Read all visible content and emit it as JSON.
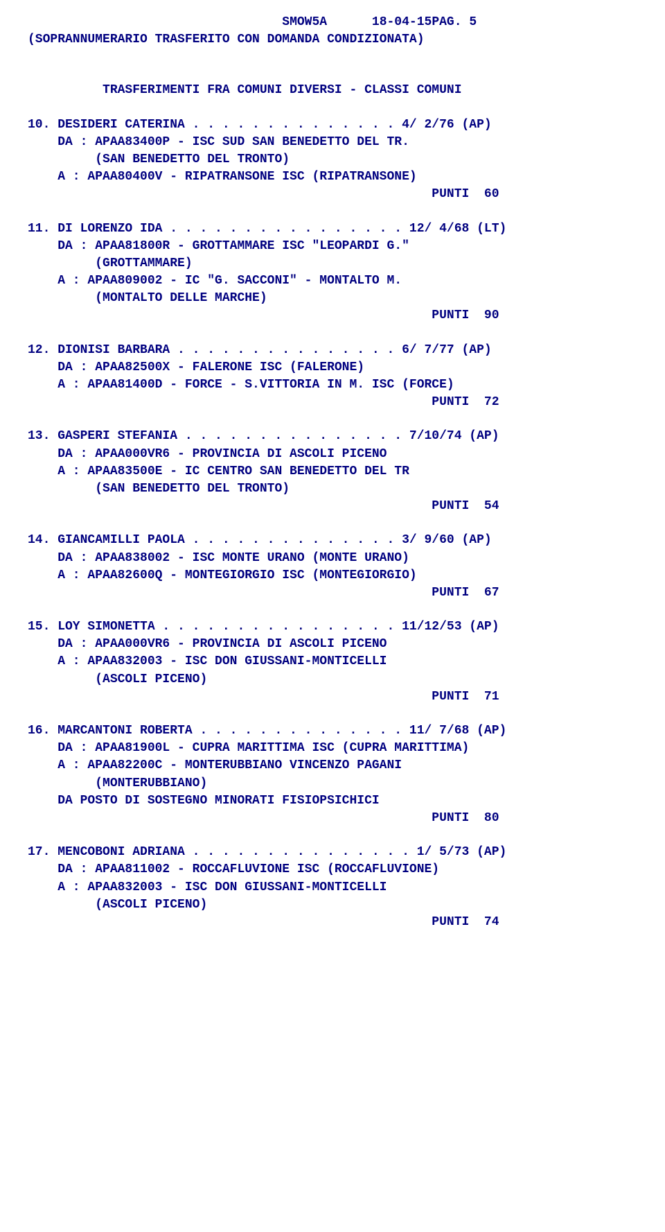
{
  "header": {
    "code": "SMOW5A",
    "date": "18-04-15",
    "page_label": "PAG.",
    "page_num": "5"
  },
  "subtitle": "(SOPRANNUMERARIO TRASFERITO CON DOMANDA CONDIZIONATA)",
  "section_title": "TRASFERIMENTI FRA COMUNI DIVERSI - CLASSI COMUNI",
  "entries": [
    {
      "num": "10.",
      "name": "DESIDERI CATERINA",
      "dots": " . . . . . . . . . . . . . .",
      "ref": " 4/ 2/76 (AP)",
      "da": "DA : APAA83400P - ISC SUD SAN BENEDETTO DEL TR.",
      "da_loc": "(SAN BENEDETTO DEL TRONTO)",
      "a": "A : APAA80400V - RIPATRANSONE ISC (RIPATRANSONE)",
      "punti": "PUNTI  60"
    },
    {
      "num": "11.",
      "name": "DI LORENZO IDA",
      "dots": " . . . . . . . . . . . . . . . .",
      "ref": " 12/ 4/68 (LT)",
      "da": "DA : APAA81800R - GROTTAMMARE ISC \"LEOPARDI G.\"",
      "da_loc": "(GROTTAMMARE)",
      "a": "A : APAA809002 - IC \"G. SACCONI\" - MONTALTO M.",
      "a_loc": "(MONTALTO DELLE MARCHE)",
      "punti": "PUNTI  90"
    },
    {
      "num": "12.",
      "name": "DIONISI BARBARA",
      "dots": " . . . . . . . . . . . . . . .",
      "ref": " 6/ 7/77 (AP)",
      "da": "DA : APAA82500X - FALERONE ISC (FALERONE)",
      "a": "A : APAA81400D - FORCE - S.VITTORIA IN M. ISC (FORCE)",
      "punti": "PUNTI  72"
    },
    {
      "num": "13.",
      "name": "GASPERI STEFANIA",
      "dots": " . . . . . . . . . . . . . . .",
      "ref": " 7/10/74 (AP)",
      "da": "DA : APAA000VR6 - PROVINCIA DI ASCOLI PICENO",
      "a": "A : APAA83500E - IC CENTRO SAN BENEDETTO DEL TR",
      "a_loc": "(SAN BENEDETTO DEL TRONTO)",
      "punti": "PUNTI  54"
    },
    {
      "num": "14.",
      "name": "GIANCAMILLI PAOLA",
      "dots": " . . . . . . . . . . . . . .",
      "ref": " 3/ 9/60 (AP)",
      "da": "DA : APAA838002 - ISC MONTE URANO (MONTE URANO)",
      "a": "A : APAA82600Q - MONTEGIORGIO ISC (MONTEGIORGIO)",
      "punti": "PUNTI  67"
    },
    {
      "num": "15.",
      "name": "LOY SIMONETTA",
      "dots": " . . . . . . . . . . . . . . . .",
      "ref": " 11/12/53 (AP)",
      "da": "DA : APAA000VR6 - PROVINCIA DI ASCOLI PICENO",
      "a": "A : APAA832003 - ISC DON GIUSSANI-MONTICELLI",
      "a_loc": "(ASCOLI PICENO)",
      "punti": "PUNTI  71"
    },
    {
      "num": "16.",
      "name": "MARCANTONI ROBERTA",
      "dots": " . . . . . . . . . . . . . .",
      "ref": " 11/ 7/68 (AP)",
      "da": "DA : APAA81900L - CUPRA MARITTIMA ISC (CUPRA MARITTIMA)",
      "a": "A : APAA82200C - MONTERUBBIANO VINCENZO PAGANI",
      "a_loc": "(MONTERUBBIANO)",
      "note": "DA POSTO DI SOSTEGNO MINORATI FISIOPSICHICI",
      "punti": "PUNTI  80"
    },
    {
      "num": "17.",
      "name": "MENCOBONI ADRIANA",
      "dots": " . . . . . . . . . . . . . . .",
      "ref": " 1/ 5/73 (AP)",
      "da": "DA : APAA811002 - ROCCAFLUVIONE ISC (ROCCAFLUVIONE)",
      "a": "A : APAA832003 - ISC DON GIUSSANI-MONTICELLI",
      "a_loc": "(ASCOLI PICENO)",
      "punti": "PUNTI  74"
    }
  ]
}
